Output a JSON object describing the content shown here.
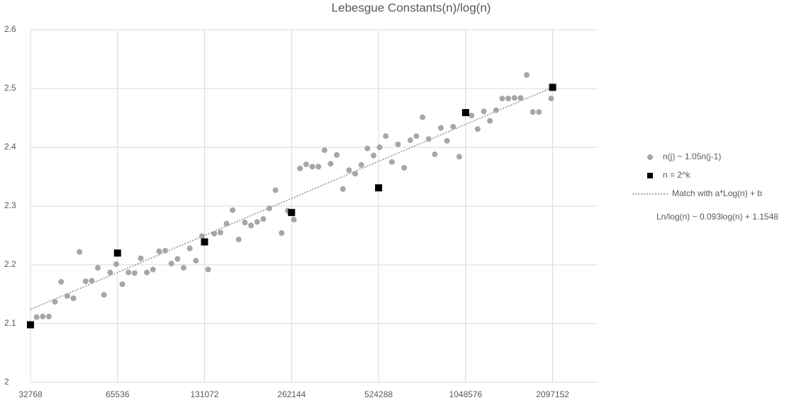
{
  "chart_data": {
    "type": "scatter",
    "title": "Lebesgue Constants(n)/log(n)",
    "xscale": "log",
    "xlim": [
      32768,
      3000000
    ],
    "xticks": [
      32768,
      65536,
      131072,
      262144,
      524288,
      1048576,
      2097152
    ],
    "ylim": [
      2,
      2.6
    ],
    "yticks": [
      2,
      2.1,
      2.2,
      2.3,
      2.4,
      2.5,
      2.6
    ],
    "grid": true,
    "legend": "right",
    "annotation": "Ln/log(n) ~ 0.093log(n) + 1.1548",
    "series": [
      {
        "name": "n(j) ~ 1.05n(j-1)",
        "color": "#a6a6a6",
        "marker": "circle",
        "x": [
          34406,
          36127,
          37933,
          39830,
          41821,
          43912,
          46108,
          48413,
          50834,
          53376,
          56044,
          58847,
          61789,
          64878,
          68122,
          71528,
          75105,
          78860,
          82803,
          86943,
          91290,
          95855,
          100648,
          105680,
          110964,
          116512,
          122338,
          128455,
          134878,
          141622,
          148703,
          156138,
          163945,
          172142,
          180749,
          189787,
          199276,
          209240,
          219702,
          230687,
          242221,
          254332,
          267049,
          280401,
          294421,
          309142,
          324599,
          340829,
          357870,
          375764,
          394552,
          414280,
          434994,
          456744,
          479581,
          503560,
          528738,
          555175,
          582934,
          612081,
          642685,
          674819,
          708560,
          743988,
          781187,
          820246,
          861258,
          904321,
          949537,
          997014,
          1046865,
          1099208,
          1154168,
          1211876,
          1272470,
          1336094,
          1402899,
          1473044,
          1546696,
          1624031,
          1705233,
          1790495,
          1880020,
          2072722
        ],
        "values": [
          2.111,
          2.112,
          2.112,
          2.137,
          2.171,
          2.147,
          2.143,
          2.222,
          2.172,
          2.173,
          2.195,
          2.149,
          2.187,
          2.201,
          2.167,
          2.187,
          2.186,
          2.211,
          2.187,
          2.192,
          2.223,
          2.224,
          2.202,
          2.21,
          2.195,
          2.228,
          2.207,
          2.249,
          2.192,
          2.253,
          2.255,
          2.27,
          2.293,
          2.243,
          2.272,
          2.267,
          2.273,
          2.278,
          2.296,
          2.327,
          2.254,
          2.292,
          2.277,
          2.364,
          2.371,
          2.367,
          2.367,
          2.395,
          2.372,
          2.387,
          2.329,
          2.361,
          2.355,
          2.37,
          2.398,
          2.386,
          2.4,
          2.419,
          2.375,
          2.405,
          2.365,
          2.412,
          2.419,
          2.451,
          2.414,
          2.388,
          2.433,
          2.411,
          2.435,
          2.384,
          2.459,
          2.454,
          2.431,
          2.461,
          2.445,
          2.463,
          2.483,
          2.483,
          2.484,
          2.484,
          2.523,
          2.46,
          2.46,
          2.483
        ]
      },
      {
        "name": "n = 2^k",
        "color": "#000000",
        "marker": "square",
        "x": [
          32768,
          65536,
          131072,
          262144,
          524288,
          1048576,
          2097152
        ],
        "values": [
          2.098,
          2.22,
          2.239,
          2.289,
          2.331,
          2.459,
          2.502
        ]
      },
      {
        "name": "Match with a*Log(n) + b",
        "color": "#8c8c8c",
        "marker": "dotted-line",
        "x": [
          32768,
          2097152
        ],
        "values": [
          2.124,
          2.502
        ]
      }
    ]
  }
}
